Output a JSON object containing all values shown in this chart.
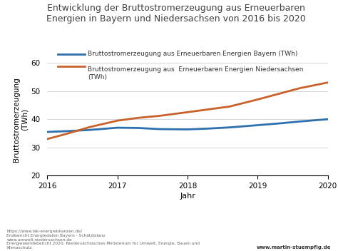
{
  "title": "Entwicklung der Bruttostromerzeugung aus Erneuerbaren\nEnergien in Bayern und Niedersachsen von 2016 bis 2020",
  "xlabel": "Jahr",
  "ylabel": "Bruttostromerzeugung\n(TWh)",
  "years": [
    2016,
    2016.3,
    2016.6,
    2017,
    2017.3,
    2017.6,
    2018,
    2018.3,
    2018.6,
    2019,
    2019.3,
    2019.6,
    2020
  ],
  "bavaria": [
    35.5,
    35.8,
    36.2,
    37.0,
    36.9,
    36.5,
    36.4,
    36.7,
    37.1,
    37.9,
    38.5,
    39.2,
    40.0
  ],
  "niedersachsen": [
    33.0,
    35.0,
    37.2,
    39.5,
    40.5,
    41.2,
    42.5,
    43.5,
    44.5,
    47.0,
    49.0,
    51.0,
    53.0
  ],
  "bavaria_color": "#2e6fad",
  "niedersachsen_color": "#c8622a",
  "ylim": [
    20,
    60
  ],
  "yticks": [
    20,
    30,
    40,
    50,
    60
  ],
  "xlim": [
    2016,
    2020
  ],
  "xticks": [
    2016,
    2017,
    2018,
    2019,
    2020
  ],
  "legend_bavaria": "Bruttostromerzeugung aus Erneuerbaren Energien Bayern (TWh)",
  "legend_niedersachsen": "Bruttostromerzeugung aus  Erneuerbaren Energien Niedersachsen\n(TWh)",
  "footnote_left": "https://www.lak-energiebilanzen.de/\nEndbericht Energiedaten Bayern - Schätzbilanz\nwww.umwelt.niedersachsen.de\nEnergiewendebericht 2020, Niedersächsisches Ministerium für Umwelt, Energie, Bauen und\nKlimaschutz",
  "footnote_right": "www.martin-stuempfig.de",
  "linewidth": 2.0
}
